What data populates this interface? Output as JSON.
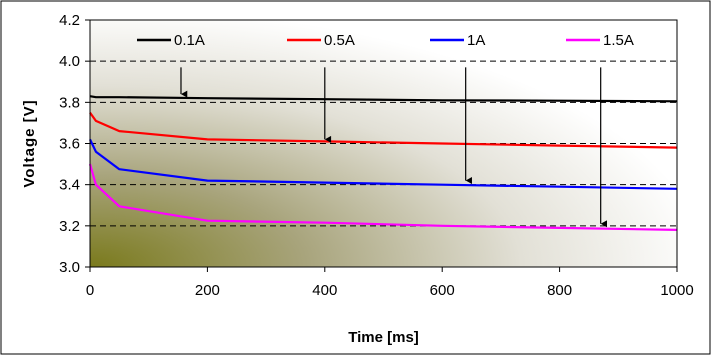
{
  "chart_data": {
    "type": "line",
    "title": "",
    "xlabel": "Time [ms]",
    "ylabel": "Voltage [V]",
    "xlim": [
      0,
      1000
    ],
    "ylim": [
      3.0,
      4.2
    ],
    "x_ticks": [
      "0",
      "200",
      "400",
      "600",
      "800",
      "1000"
    ],
    "y_ticks": [
      "3.0",
      "3.2",
      "3.4",
      "3.6",
      "3.8",
      "4.0",
      "4.2"
    ],
    "grid": "horizontal-dashed",
    "legend_position": "top",
    "series": [
      {
        "name": "0.1A",
        "color": "#000000",
        "points": [
          [
            0,
            3.83
          ],
          [
            10,
            3.825
          ],
          [
            50,
            3.825
          ],
          [
            200,
            3.82
          ],
          [
            400,
            3.815
          ],
          [
            600,
            3.81
          ],
          [
            800,
            3.808
          ],
          [
            1000,
            3.805
          ]
        ]
      },
      {
        "name": "0.5A",
        "color": "#ff0000",
        "points": [
          [
            0,
            3.75
          ],
          [
            10,
            3.71
          ],
          [
            50,
            3.66
          ],
          [
            200,
            3.62
          ],
          [
            400,
            3.61
          ],
          [
            600,
            3.6
          ],
          [
            800,
            3.59
          ],
          [
            1000,
            3.58
          ]
        ]
      },
      {
        "name": "1A",
        "color": "#0000ff",
        "points": [
          [
            0,
            3.62
          ],
          [
            10,
            3.56
          ],
          [
            50,
            3.475
          ],
          [
            200,
            3.42
          ],
          [
            400,
            3.41
          ],
          [
            600,
            3.4
          ],
          [
            800,
            3.39
          ],
          [
            1000,
            3.38
          ]
        ]
      },
      {
        "name": "1.5A",
        "color": "#ff00ff",
        "points": [
          [
            0,
            3.5
          ],
          [
            10,
            3.4
          ],
          [
            50,
            3.295
          ],
          [
            200,
            3.225
          ],
          [
            400,
            3.215
          ],
          [
            600,
            3.2
          ],
          [
            800,
            3.19
          ],
          [
            1000,
            3.18
          ]
        ]
      }
    ],
    "annotations": [
      {
        "type": "arrow",
        "series": "0.1A",
        "x": 155,
        "y_start": 3.97,
        "y_end": 3.84
      },
      {
        "type": "arrow",
        "series": "0.5A",
        "x": 400,
        "y_start": 3.97,
        "y_end": 3.62
      },
      {
        "type": "arrow",
        "series": "1A",
        "x": 640,
        "y_start": 3.97,
        "y_end": 3.42
      },
      {
        "type": "arrow",
        "series": "1.5A",
        "x": 870,
        "y_start": 3.97,
        "y_end": 3.21
      }
    ]
  }
}
